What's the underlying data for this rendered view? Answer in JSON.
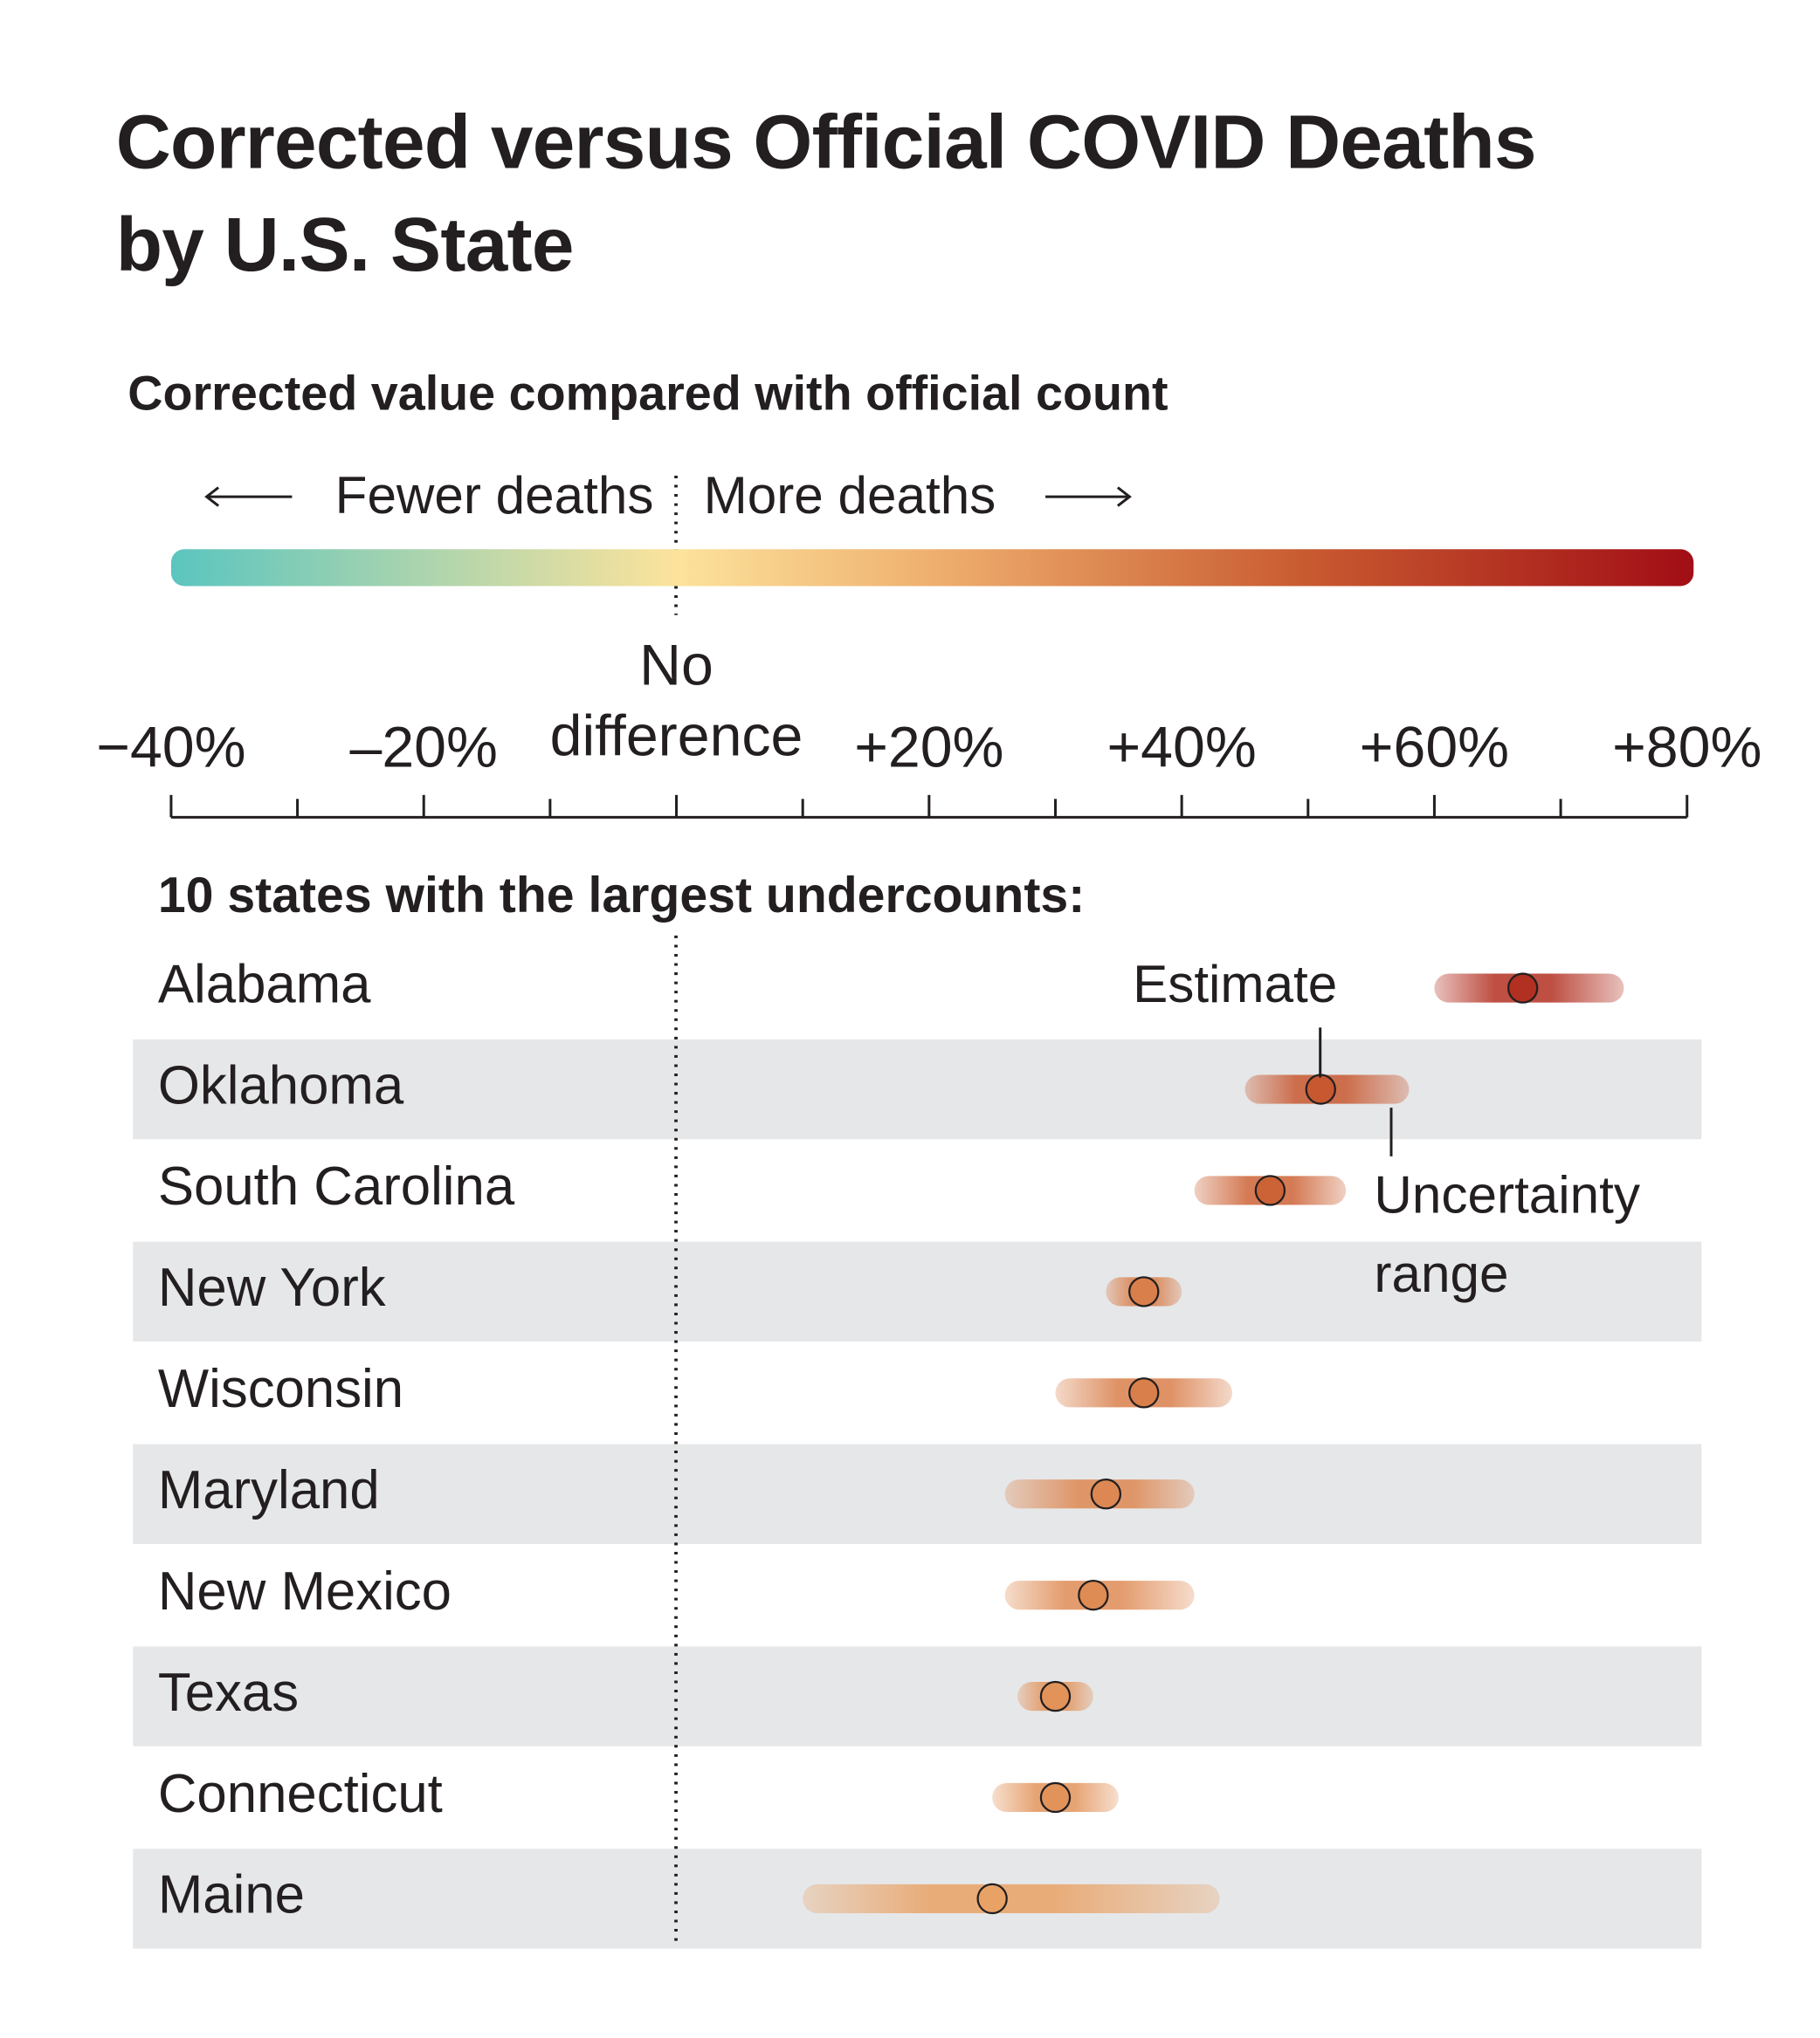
{
  "chart_data": {
    "type": "range-dot",
    "title": "Corrected versus Official COVID Deaths\nby U.S. State",
    "subtitle": "Corrected value compared with official count",
    "direction_labels": {
      "fewer": "Fewer deaths",
      "more": "More deaths"
    },
    "section_label": "10 states with the largest undercounts:",
    "annotations": {
      "estimate": "Estimate",
      "range": "Uncertainty\nrange"
    },
    "categories": [
      "Alabama",
      "Oklahoma",
      "South Carolina",
      "New York",
      "Wisconsin",
      "Maryland",
      "New Mexico",
      "Texas",
      "Connecticut",
      "Maine"
    ],
    "values": [
      67,
      51,
      47,
      37,
      37,
      34,
      33,
      30,
      30,
      25
    ],
    "range_low": [
      60,
      45,
      41,
      34,
      30,
      26,
      26,
      27,
      25,
      10
    ],
    "range_high": [
      75,
      58,
      53,
      40,
      44,
      41,
      41,
      33,
      35,
      43
    ],
    "xlim": [
      -40,
      80
    ],
    "xticks": [
      {
        "value": -40,
        "label": "−40%"
      },
      {
        "value": -20,
        "label": "–20%"
      },
      {
        "value": 0,
        "label": "No\ndifference"
      },
      {
        "value": 20,
        "label": "+20%"
      },
      {
        "value": 40,
        "label": "+40%"
      },
      {
        "value": 60,
        "label": "+60%"
      },
      {
        "value": 80,
        "label": "+80%"
      }
    ],
    "minor_xticks": [
      -30,
      -10,
      10,
      30,
      50,
      70
    ],
    "colorscale": [
      {
        "value": -40,
        "color": "#5bc5bf"
      },
      {
        "value": 0,
        "color": "#fce39c"
      },
      {
        "value": 20,
        "color": "#efb06f"
      },
      {
        "value": 50,
        "color": "#c85a30"
      },
      {
        "value": 80,
        "color": "#a20f16"
      }
    ],
    "stripe_color": "#e6e7e9"
  }
}
